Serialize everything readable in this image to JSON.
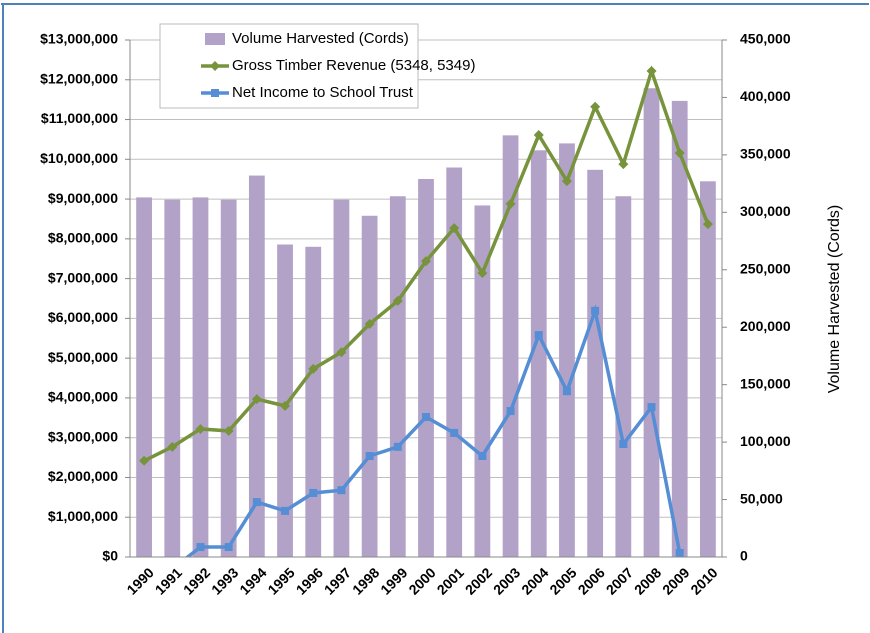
{
  "chart_data": {
    "type": "bar_line",
    "categories": [
      "1990",
      "1991",
      "1992",
      "1993",
      "1994",
      "1995",
      "1996",
      "1997",
      "1998",
      "1999",
      "2000",
      "2001",
      "2002",
      "2003",
      "2004",
      "2005",
      "2006",
      "2007",
      "2008",
      "2009",
      "2010"
    ],
    "y2label": "Volume Harvested (Cords)",
    "series": [
      {
        "name": "Volume Harvested (Cords)",
        "type": "bar",
        "axis": "y2",
        "color": "#b3a2c7",
        "values": [
          313000,
          311000,
          313000,
          311000,
          332000,
          272000,
          270000,
          311000,
          297000,
          314000,
          329000,
          339000,
          306000,
          367000,
          354000,
          360000,
          337000,
          314000,
          408000,
          397000,
          327000
        ]
      },
      {
        "name": "Gross Timber Revenue (5348, 5349)",
        "type": "line",
        "axis": "y",
        "color": "#77933c",
        "marker": "diamond",
        "values": [
          2420000,
          2770000,
          3220000,
          3170000,
          3970000,
          3800000,
          4730000,
          5150000,
          5860000,
          6440000,
          7440000,
          8270000,
          7140000,
          8880000,
          10610000,
          9450000,
          11320000,
          9880000,
          12220000,
          10160000,
          8370000
        ]
      },
      {
        "name": "Net Income to School Trust",
        "type": "line",
        "axis": "y",
        "color": "#558ed5",
        "marker": "square",
        "values": [
          null,
          -300000,
          250000,
          250000,
          1380000,
          1160000,
          1610000,
          1680000,
          2540000,
          2770000,
          3520000,
          3120000,
          2540000,
          3670000,
          5580000,
          4170000,
          6190000,
          2840000,
          3770000,
          100000,
          null
        ]
      }
    ],
    "ylim": [
      0,
      13000000
    ],
    "yticks": [
      {
        "value": 0,
        "label": "$0"
      },
      {
        "value": 1000000,
        "label": "$1,000,000"
      },
      {
        "value": 2000000,
        "label": "$2,000,000"
      },
      {
        "value": 3000000,
        "label": "$3,000,000"
      },
      {
        "value": 4000000,
        "label": "$4,000,000"
      },
      {
        "value": 5000000,
        "label": "$5,000,000"
      },
      {
        "value": 6000000,
        "label": "$6,000,000"
      },
      {
        "value": 7000000,
        "label": "$7,000,000"
      },
      {
        "value": 8000000,
        "label": "$8,000,000"
      },
      {
        "value": 9000000,
        "label": "$9,000,000"
      },
      {
        "value": 10000000,
        "label": "$10,000,000"
      },
      {
        "value": 11000000,
        "label": "$11,000,000"
      },
      {
        "value": 12000000,
        "label": "$12,000,000"
      },
      {
        "value": 13000000,
        "label": "$13,000,000"
      }
    ],
    "y2lim": [
      0,
      450000
    ],
    "y2ticks": [
      0,
      {
        "value": 50000,
        "label": "50,000"
      },
      {
        "value": 100000,
        "label": "100,000"
      },
      {
        "value": 150000,
        "label": "150,000"
      },
      {
        "value": 200000,
        "label": "200,000"
      },
      {
        "value": 250000,
        "label": "250,000"
      },
      {
        "value": 300000,
        "label": "300,000"
      },
      {
        "value": 350000,
        "label": "350,000"
      },
      {
        "value": 400000,
        "label": "400,000"
      },
      {
        "value": 450000,
        "label": "450,000"
      }
    ],
    "grid": true
  }
}
